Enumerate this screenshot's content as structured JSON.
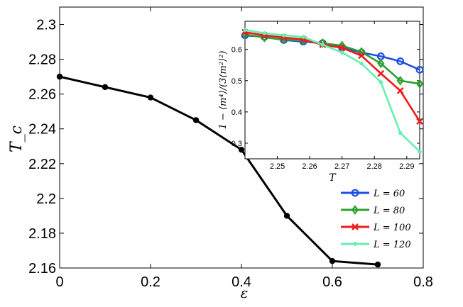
{
  "colors": {
    "main_line": "#000000",
    "L60": "#1f4fe0",
    "L80": "#2ca02c",
    "L100": "#ee1c1c",
    "L120": "#66f0b0"
  },
  "chart_data": [
    {
      "id": "main",
      "type": "line",
      "xlabel": "ε",
      "ylabel": "T_c",
      "x": [
        0,
        0.1,
        0.2,
        0.3,
        0.4,
        0.5,
        0.6,
        0.7
      ],
      "values": [
        2.27,
        2.264,
        2.258,
        2.245,
        2.228,
        2.19,
        2.164,
        2.162
      ],
      "xlim": [
        0,
        0.8
      ],
      "ylim": [
        2.16,
        2.31
      ],
      "xticks": [
        0,
        0.2,
        0.4,
        0.6,
        0.8
      ],
      "xtick_labels": [
        "0",
        "0.2",
        "0.4",
        "0.6",
        "0.8"
      ],
      "yticks": [
        2.16,
        2.18,
        2.2,
        2.22,
        2.24,
        2.26,
        2.28,
        2.3
      ],
      "ytick_labels": [
        "2.16",
        "2.18",
        "2.2",
        "2.22",
        "2.24",
        "2.26",
        "2.28",
        "2.3"
      ],
      "grid": false
    },
    {
      "id": "inset",
      "type": "line",
      "xlabel": "T",
      "ylabel": "1 − ⟨m⁴⟩/(3⟨m²⟩²)",
      "x": [
        2.24,
        2.246,
        2.252,
        2.258,
        2.264,
        2.27,
        2.276,
        2.282,
        2.288,
        2.294
      ],
      "xlim": [
        2.24,
        2.294
      ],
      "ylim": [
        0.25,
        0.69
      ],
      "xticks": [
        2.25,
        2.26,
        2.27,
        2.28,
        2.29
      ],
      "xtick_labels": [
        "2.25",
        "2.26",
        "2.27",
        "2.28",
        "2.29"
      ],
      "yticks": [
        0.3,
        0.4,
        0.5,
        0.6
      ],
      "ytick_labels": [
        "0.3",
        "0.4",
        "0.5",
        "0.6"
      ],
      "legend_position": "bottom-right (below inset)",
      "series": [
        {
          "name": "L = 60",
          "marker": "circle",
          "color": "#1f4fe0",
          "values": [
            0.645,
            0.64,
            0.63,
            0.625,
            0.62,
            0.605,
            0.59,
            0.578,
            0.562,
            0.535
          ]
        },
        {
          "name": "L = 80",
          "marker": "diamond",
          "color": "#2ca02c",
          "values": [
            0.648,
            0.638,
            0.632,
            0.628,
            0.62,
            0.612,
            0.592,
            0.555,
            0.5,
            0.49
          ]
        },
        {
          "name": "L = 100",
          "marker": "x",
          "color": "#ee1c1c",
          "values": [
            0.655,
            0.645,
            0.638,
            0.632,
            0.615,
            0.605,
            0.58,
            0.523,
            0.468,
            0.37
          ]
        },
        {
          "name": "L = 120",
          "marker": "dot",
          "color": "#66f0b0",
          "values": [
            0.662,
            0.652,
            0.645,
            0.64,
            0.615,
            0.59,
            0.555,
            0.495,
            0.333,
            0.273
          ]
        }
      ]
    }
  ]
}
